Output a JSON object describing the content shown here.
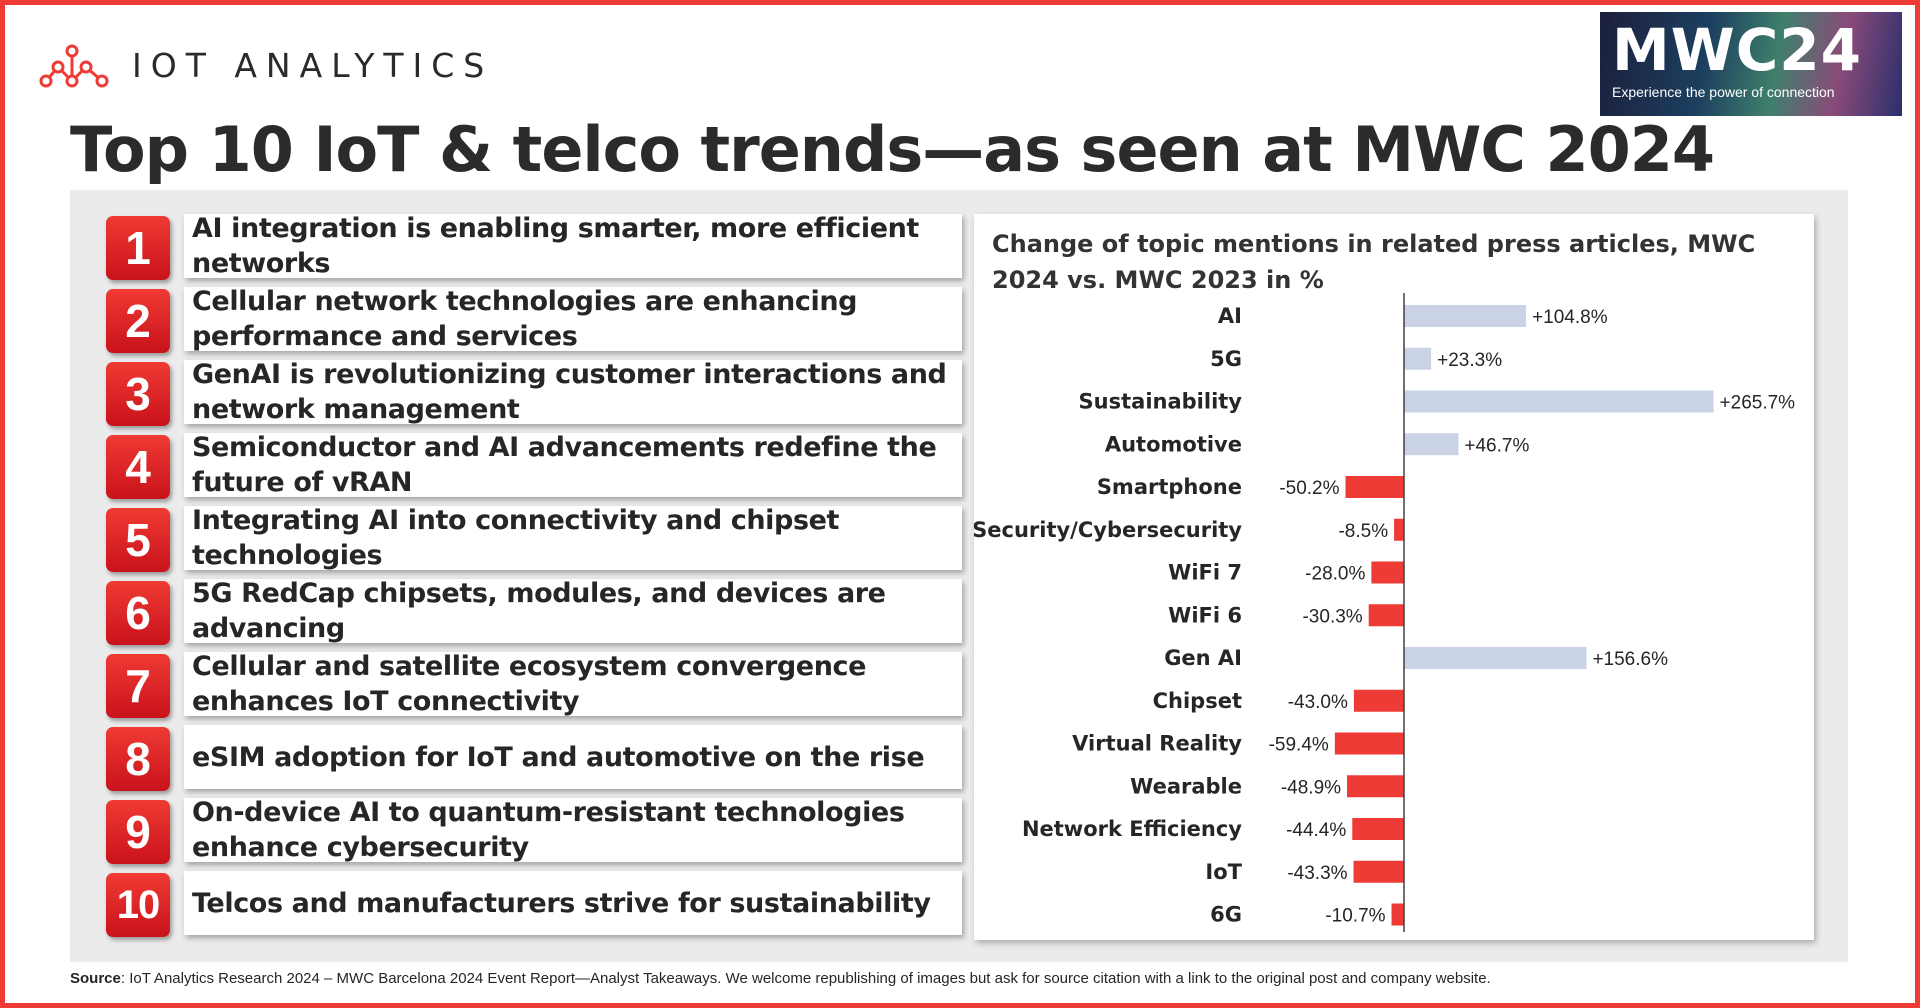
{
  "brand": {
    "logo_text": "IOT ANALYTICS",
    "accent_color": "#ee3b36"
  },
  "event_badge": {
    "title": "MWC24",
    "tagline": "Experience the power of connection"
  },
  "title": "Top 10 IoT & telco trends—as seen at MWC 2024",
  "trends": [
    {
      "number": "1",
      "text": "AI integration is enabling smarter, more efficient networks"
    },
    {
      "number": "2",
      "text": "Cellular network technologies are enhancing performance and services"
    },
    {
      "number": "3",
      "text": "GenAI is revolutionizing customer interactions and network management"
    },
    {
      "number": "4",
      "text": "Semiconductor and AI advancements redefine the future of vRAN"
    },
    {
      "number": "5",
      "text": "Integrating AI into connectivity and chipset technologies"
    },
    {
      "number": "6",
      "text": "5G RedCap chipsets, modules, and devices are advancing"
    },
    {
      "number": "7",
      "text": "Cellular and satellite ecosystem convergence enhances IoT connectivity"
    },
    {
      "number": "8",
      "text": "eSIM adoption for IoT and automotive on the rise"
    },
    {
      "number": "9",
      "text": "On-device AI to quantum-resistant technologies enhance cybersecurity"
    },
    {
      "number": "10",
      "text": "Telcos and manufacturers strive for sustainability"
    }
  ],
  "chart_data": {
    "type": "bar",
    "orientation": "horizontal",
    "title": "Change of topic mentions in related press articles, MWC 2024 vs. MWC 2023 in %",
    "categories": [
      "AI",
      "5G",
      "Sustainability",
      "Automotive",
      "Smartphone",
      "Security/Cybersecurity",
      "WiFi 7",
      "WiFi 6",
      "Gen AI",
      "Chipset",
      "Virtual Reality",
      "Wearable",
      "Network Efficiency",
      "IoT",
      "6G"
    ],
    "values": [
      104.8,
      23.3,
      265.7,
      46.7,
      -50.2,
      -8.5,
      -28.0,
      -30.3,
      156.6,
      -43.0,
      -59.4,
      -48.9,
      -44.4,
      -43.3,
      -10.7
    ],
    "value_labels": [
      "+104.8%",
      "+23.3%",
      "+265.7%",
      "+46.7%",
      "-50.2%",
      "-8.5%",
      "-28.0%",
      "-30.3%",
      "+156.6%",
      "-43.0%",
      "-59.4%",
      "-48.9%",
      "-44.4%",
      "-43.3%",
      "-10.7%"
    ],
    "xlim": [
      -60,
      270
    ],
    "grid": false,
    "colors": {
      "positive": "#c9d3e5",
      "negative": "#ee3b36",
      "axis": "#404040"
    }
  },
  "source": {
    "label": "Source",
    "text": ": IoT Analytics Research 2024 – MWC Barcelona 2024 Event Report—Analyst Takeaways. We welcome republishing of images but ask for source citation with a link to the original post and company website."
  }
}
